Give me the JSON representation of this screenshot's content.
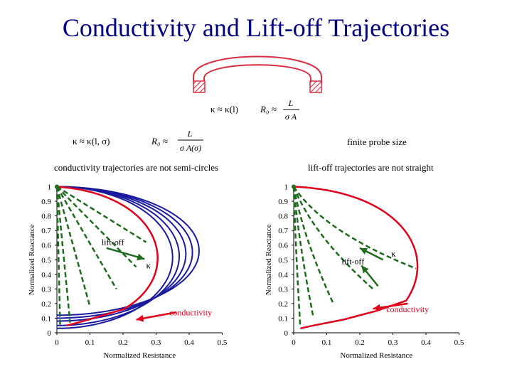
{
  "title": "Conductivity and Lift-off Trajectories",
  "colors": {
    "title": "#000080",
    "blue": "#1a1aa0",
    "red": "#e0001b",
    "green": "#1e6b1e",
    "coil": "#d83040"
  },
  "formulas": {
    "top_left": "κ ≈ κ(l)",
    "top_right_lhs": "R₀ ≈",
    "top_right_num": "L",
    "top_right_den": "σ A",
    "mid_left": "κ ≈ κ(l, σ)",
    "mid_right_lhs": "R₀ ≈",
    "mid_right_num": "L",
    "mid_right_den": "σ A(σ)"
  },
  "notes": {
    "finite_probe": "finite probe size",
    "left_heading": "conductivity trajectories are not semi-circles",
    "right_heading": "lift-off trajectories are not straight"
  },
  "left_chart": {
    "ylabel": "Normalized Reactance",
    "xlabel": "Normalized Resistance",
    "xticks": [
      "0",
      "0.1",
      "0.2",
      "0.3",
      "0.4",
      "0.5"
    ],
    "yticks": [
      "0",
      "0.1",
      "0.2",
      "0.3",
      "0.4",
      "0.5",
      "0.6",
      "0.7",
      "0.8",
      "0.9",
      "1"
    ],
    "liftoff_label": "lift-off",
    "kappa_label": "κ",
    "conductivity_label": "conductivity"
  },
  "right_chart": {
    "ylabel": "Normalized Reactance",
    "xlabel": "Normalized Resistance",
    "xticks": [
      "0",
      "0.1",
      "0.2",
      "0.3",
      "0.4",
      "0.5"
    ],
    "yticks": [
      "0",
      "0.1",
      "0.2",
      "0.3",
      "0.4",
      "0.5",
      "0.6",
      "0.7",
      "0.8",
      "0.9",
      "1"
    ],
    "liftoff_label": "lift-off",
    "kappa_label": "κ",
    "conductivity_label": "conductivity"
  }
}
